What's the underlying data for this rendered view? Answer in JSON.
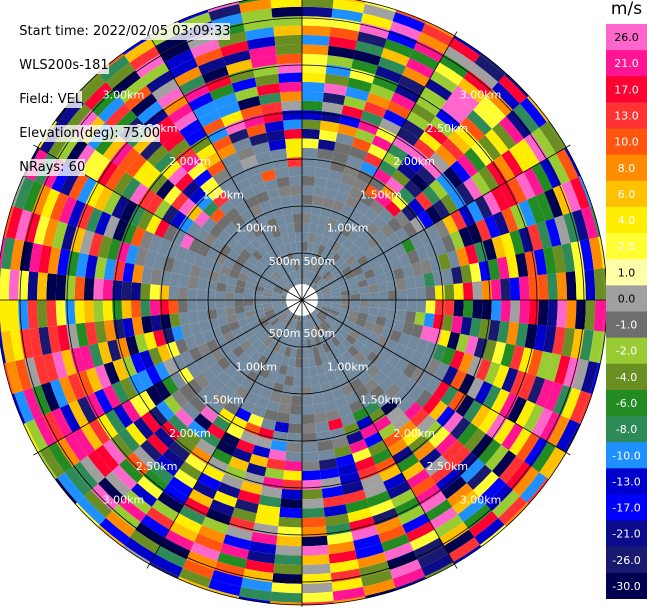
{
  "meta": {
    "start_time": "Start time: 2022/02/05 03:09:33",
    "instrument": "WLS200s-181",
    "field": "Field: VEL",
    "elevation": "Elevation(deg): 75.00",
    "nrays": "NRays: 60"
  },
  "colorbar": {
    "unit": "m/s",
    "ticks": [
      "26.0",
      "21.0",
      "17.0",
      "13.0",
      "10.0",
      "8.0",
      "6.0",
      "4.0",
      "2.0",
      "1.0",
      "0.0",
      "-1.0",
      "-2.0",
      "-4.0",
      "-6.0",
      "-8.0",
      "-10.0",
      "-13.0",
      "-17.0",
      "-21.0",
      "-26.0",
      "-30.0"
    ],
    "colors": [
      "#ff66cc",
      "#ff1493",
      "#ff0033",
      "#ff3333",
      "#ff5511",
      "#ff8c00",
      "#ffc000",
      "#ffee00",
      "#ffff33",
      "#ffffaa",
      "#a0a0a0",
      "#6e6e6e",
      "#99cc33",
      "#6b8e23",
      "#228b22",
      "#2e8b57",
      "#1e90ff",
      "#0000cd",
      "#0000ff",
      "#0a0a8a",
      "#191970",
      "#000050"
    ]
  },
  "chart_data": {
    "type": "heatmap",
    "projection": "polar (PPI)",
    "field": "VEL",
    "units": "m/s",
    "n_rays": 60,
    "range_rings_km": [
      0.5,
      1.0,
      1.5,
      2.0,
      2.5,
      3.0
    ],
    "ring_labels": [
      "500m",
      "1.00km",
      "1.50km",
      "2.00km",
      "2.50km",
      "3.00km"
    ],
    "color_scale_min": -30.0,
    "color_scale_max": 26.0,
    "grid": true,
    "legend": "right"
  }
}
